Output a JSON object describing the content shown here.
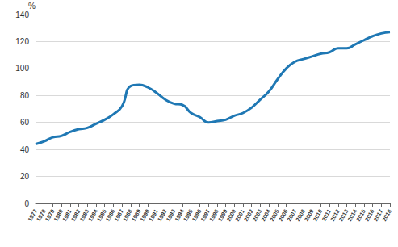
{
  "chart_data": {
    "type": "line",
    "ylabel": "%",
    "categories": [
      "1977",
      "1978",
      "1979",
      "1980",
      "1981",
      "1982",
      "1983",
      "1984",
      "1985",
      "1986",
      "1987",
      "1988",
      "1989",
      "1990",
      "1991",
      "1992",
      "1993",
      "1994",
      "1995",
      "1996",
      "1997",
      "1998",
      "1999",
      "2000",
      "2001",
      "2002",
      "2003",
      "2004",
      "2005",
      "2006",
      "2007",
      "2008",
      "2009",
      "2010",
      "2011",
      "2012",
      "2013",
      "2014",
      "2015",
      "2016",
      "2017",
      "2018"
    ],
    "values": [
      44,
      46,
      49,
      50,
      53,
      55,
      56,
      59,
      62,
      66,
      72,
      87,
      88,
      86,
      82,
      77,
      74,
      73,
      67,
      64,
      60,
      61,
      62,
      65,
      67,
      71,
      77,
      83,
      92,
      100,
      105,
      107,
      109,
      111,
      112,
      115,
      115,
      118,
      121,
      124,
      126,
      127
    ],
    "color": "#1f78b4",
    "ylim": [
      0,
      140
    ],
    "yticks": [
      0,
      20,
      40,
      60,
      80,
      100,
      120,
      140
    ],
    "grid": true
  }
}
